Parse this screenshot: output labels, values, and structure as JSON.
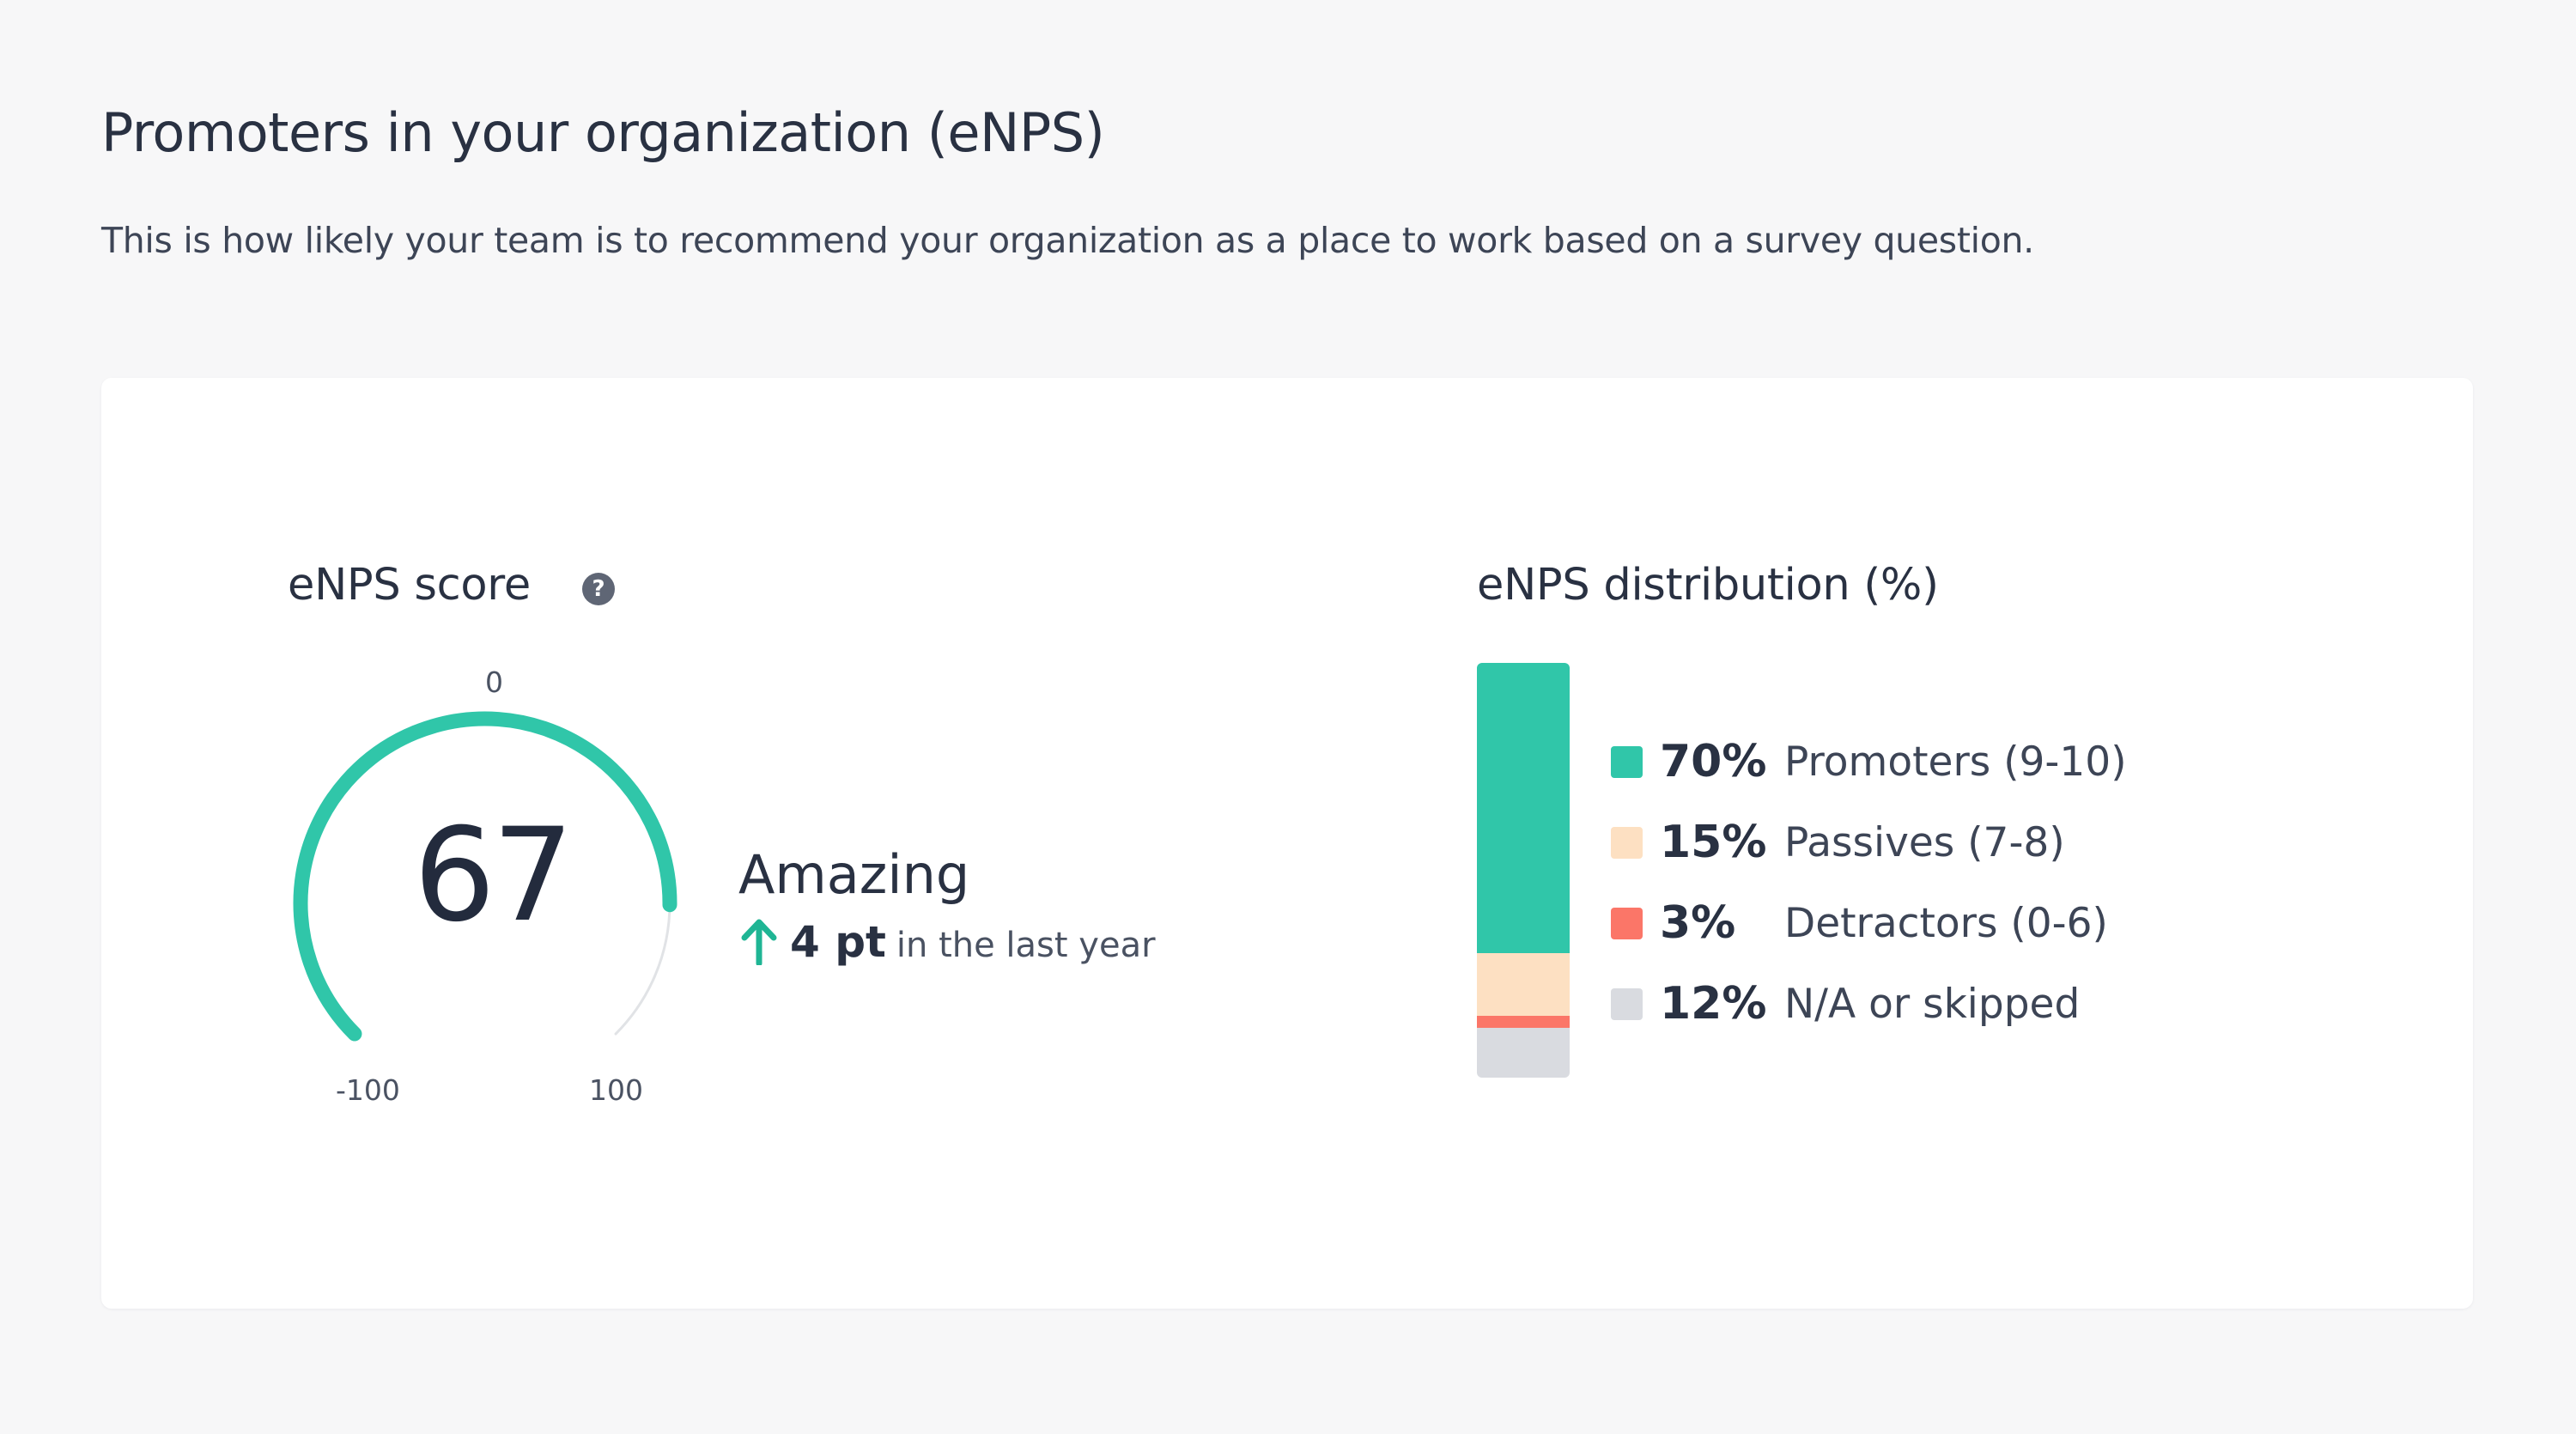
{
  "page": {
    "title": "Promoters in your organization (eNPS)",
    "subtitle": "This is how likely your team is to recommend your organization as a place to work based on a survey question."
  },
  "score": {
    "title": "eNPS score",
    "help_icon": "question-circle-icon",
    "value": "67",
    "numeric_value": 67,
    "scale_min_label": "-100",
    "scale_mid_label": "0",
    "scale_max_label": "100",
    "scale_min": -100,
    "scale_max": 100,
    "rating": "Amazing",
    "trend_icon": "arrow-up-icon",
    "trend_value": "4 pt",
    "trend_period": "in the last year"
  },
  "distribution": {
    "title": "eNPS distribution (%)",
    "items": [
      {
        "percent": "70%",
        "label": "Promoters (9-10)",
        "color": "#30c6a9"
      },
      {
        "percent": "15%",
        "label": "Passives (7-8)",
        "color": "#fde0c2"
      },
      {
        "percent": "3%",
        "label": "Detractors (0-6)",
        "color": "#fb7668"
      },
      {
        "percent": "12%",
        "label": "N/A or skipped",
        "color": "#d9dbe0"
      }
    ]
  },
  "colors": {
    "accent": "#30c6a9",
    "track": "#e1e3e6",
    "text": "#293142"
  },
  "chart_data": [
    {
      "type": "gauge",
      "title": "eNPS score",
      "value": 67,
      "range": [
        -100,
        100
      ],
      "tick_labels": [
        "-100",
        "0",
        "100"
      ]
    },
    {
      "type": "bar",
      "title": "eNPS distribution (%)",
      "stacked": true,
      "categories": [
        "Promoters (9-10)",
        "Passives (7-8)",
        "Detractors (0-6)",
        "N/A or skipped"
      ],
      "values": [
        70,
        15,
        3,
        12
      ]
    }
  ]
}
